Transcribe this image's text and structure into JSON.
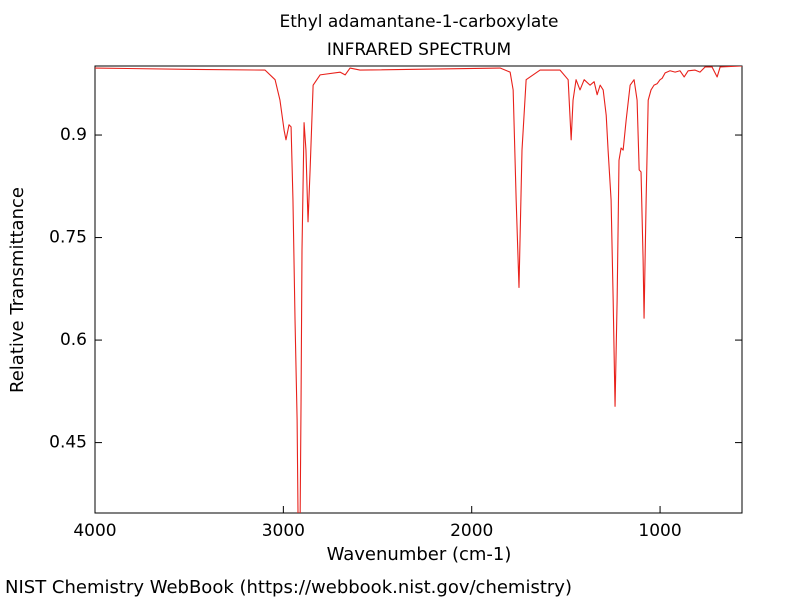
{
  "chart_data": {
    "type": "line",
    "title": "Ethyl adamantane-1-carboxylate",
    "subtitle": "INFRARED SPECTRUM",
    "x_label": "Wavenumber (cm-1)",
    "y_label": "Relative Transmittance",
    "source": "NIST Chemistry WebBook (https://webbook.nist.gov/chemistry)",
    "xlim": [
      4000,
      565
    ],
    "ylim": [
      0.347,
      1.001
    ],
    "xticks": [
      4000,
      3000,
      2000,
      1000
    ],
    "yticks": [
      0.45,
      0.6,
      0.75,
      0.9
    ],
    "series": [
      {
        "color": "#e8211b",
        "x": [
          4000,
          3469,
          3097,
          3044,
          3018,
          2996,
          2986,
          2970,
          2959,
          2949,
          2938,
          2927,
          2922,
          2911,
          2906,
          2901,
          2890,
          2880,
          2869,
          2858,
          2842,
          2805,
          2699,
          2672,
          2646,
          2593,
          1849,
          1796,
          1780,
          1764,
          1749,
          1733,
          1711,
          1637,
          1531,
          1488,
          1472,
          1462,
          1446,
          1425,
          1403,
          1372,
          1350,
          1334,
          1318,
          1302,
          1286,
          1276,
          1260,
          1249,
          1239,
          1228,
          1218,
          1207,
          1196,
          1180,
          1159,
          1138,
          1122,
          1111,
          1101,
          1090,
          1085,
          1074,
          1063,
          1048,
          1032,
          1016,
          1000,
          989,
          973,
          947,
          920,
          894,
          872,
          851,
          814,
          788,
          761,
          724,
          697,
          681,
          565
        ],
        "values": [
          0.998,
          0.996,
          0.995,
          0.981,
          0.951,
          0.907,
          0.893,
          0.915,
          0.912,
          0.805,
          0.629,
          0.483,
          0.34,
          0.34,
          0.512,
          0.732,
          0.918,
          0.878,
          0.773,
          0.849,
          0.973,
          0.988,
          0.992,
          0.988,
          0.998,
          0.995,
          0.998,
          0.992,
          0.966,
          0.805,
          0.677,
          0.878,
          0.981,
          0.995,
          0.995,
          0.981,
          0.893,
          0.951,
          0.981,
          0.966,
          0.981,
          0.973,
          0.978,
          0.959,
          0.973,
          0.966,
          0.929,
          0.878,
          0.805,
          0.658,
          0.503,
          0.658,
          0.863,
          0.881,
          0.878,
          0.922,
          0.973,
          0.981,
          0.951,
          0.849,
          0.846,
          0.717,
          0.632,
          0.805,
          0.951,
          0.966,
          0.973,
          0.975,
          0.981,
          0.983,
          0.991,
          0.994,
          0.992,
          0.994,
          0.985,
          0.994,
          0.995,
          0.992,
          0.9996,
          0.9996,
          0.985,
          0.9996,
          1.001
        ]
      }
    ]
  }
}
